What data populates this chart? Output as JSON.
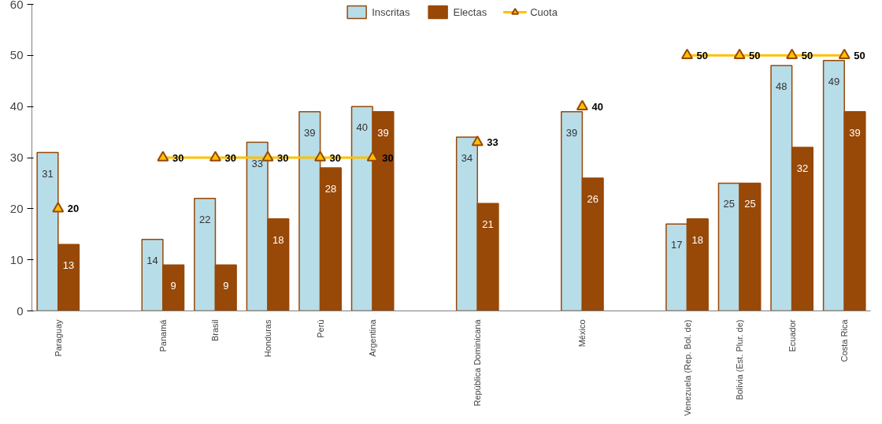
{
  "chart_data": {
    "type": "bar",
    "categories": [
      "Paraguay",
      null,
      "Panamá",
      "Brasil",
      "Honduras",
      "Perú",
      "Argentina",
      null,
      "República Dominicana",
      null,
      "México",
      null,
      "Venezuela (Rep. Bol. de)",
      "Bolivia (Est. Plur. de)",
      "Ecuador",
      "Costa Rica"
    ],
    "series": [
      {
        "name": "Inscritas",
        "color": "#b7dde8",
        "values": [
          31,
          null,
          14,
          22,
          33,
          39,
          40,
          null,
          34,
          null,
          39,
          null,
          17,
          25,
          48,
          49
        ]
      },
      {
        "name": "Electas",
        "color": "#984807",
        "values": [
          13,
          null,
          9,
          9,
          18,
          28,
          39,
          null,
          21,
          null,
          26,
          null,
          18,
          25,
          32,
          39
        ]
      },
      {
        "name": "Cuota",
        "type": "line",
        "color": "#ffc000",
        "marker": "triangle",
        "values": [
          20,
          null,
          30,
          30,
          30,
          30,
          30,
          null,
          33,
          null,
          40,
          null,
          50,
          50,
          50,
          50
        ]
      }
    ],
    "ylim": [
      0,
      60
    ],
    "yticks": [
      0,
      10,
      20,
      30,
      40,
      50,
      60
    ],
    "grid": false,
    "legend": "top",
    "data_labels": true
  }
}
